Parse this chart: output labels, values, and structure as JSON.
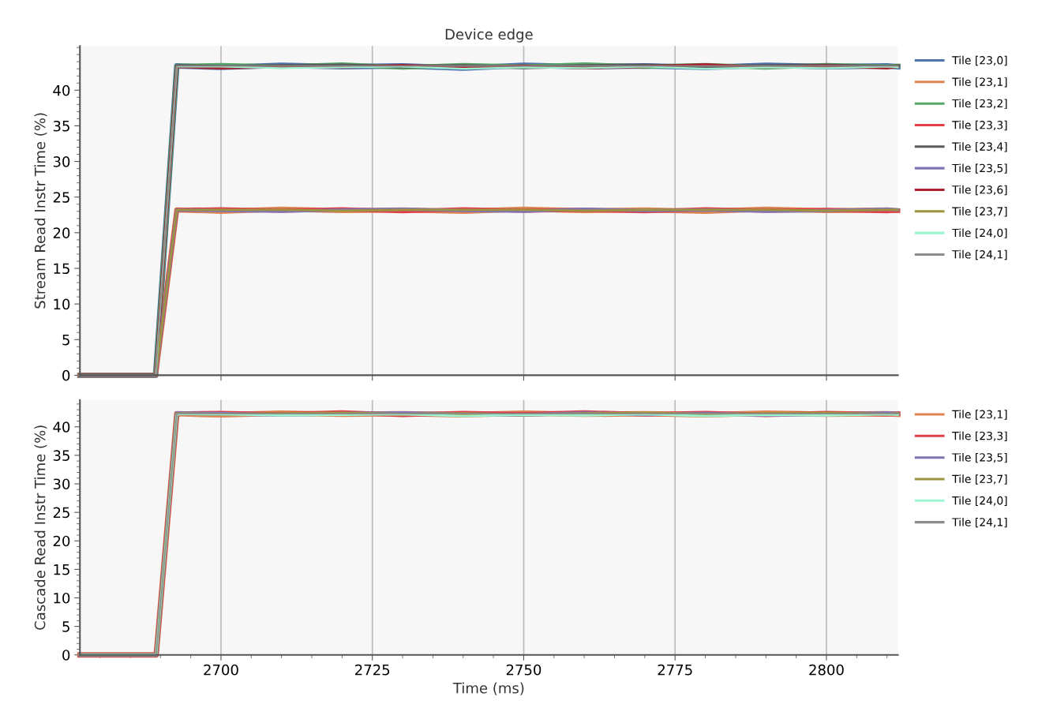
{
  "chart_data": [
    {
      "type": "line",
      "title": "Device edge",
      "ylabel": "Stream Read Instr Time (%)",
      "xlim": [
        2676.7,
        2811.8
      ],
      "ylim": [
        0,
        46.2
      ],
      "xticks": [
        2700,
        2725,
        2750,
        2775,
        2800
      ],
      "yticks": [
        0,
        5,
        10,
        15,
        20,
        25,
        30,
        35,
        40,
        {
          "value": 1,
          "label": null
        },
        {
          "value": 2,
          "label": null
        },
        {
          "value": 3,
          "label": null
        },
        {
          "value": 4,
          "label": null
        },
        {
          "value": 6,
          "label": null
        },
        {
          "value": 7,
          "label": null
        },
        {
          "value": 8,
          "label": null
        },
        {
          "value": 9,
          "label": null
        },
        {
          "value": 11,
          "label": null
        },
        {
          "value": 12,
          "label": null
        },
        {
          "value": 13,
          "label": null
        },
        {
          "value": 14,
          "label": null
        },
        {
          "value": 16,
          "label": null
        },
        {
          "value": 17,
          "label": null
        },
        {
          "value": 18,
          "label": null
        },
        {
          "value": 19,
          "label": null
        },
        {
          "value": 21,
          "label": null
        },
        {
          "value": 22,
          "label": null
        },
        {
          "value": 23,
          "label": null
        },
        {
          "value": 24,
          "label": null
        },
        {
          "value": 26,
          "label": null
        },
        {
          "value": 27,
          "label": null
        },
        {
          "value": 28,
          "label": null
        },
        {
          "value": 29,
          "label": null
        },
        {
          "value": 31,
          "label": null
        },
        {
          "value": 32,
          "label": null
        },
        {
          "value": 33,
          "label": null
        },
        {
          "value": 34,
          "label": null
        },
        {
          "value": 36,
          "label": null
        },
        {
          "value": 37,
          "label": null
        },
        {
          "value": 38,
          "label": null
        },
        {
          "value": 39,
          "label": null
        },
        {
          "value": 41,
          "label": null
        },
        {
          "value": 42,
          "label": null
        },
        {
          "value": 43,
          "label": null
        },
        {
          "value": 44,
          "label": null
        },
        {
          "value": 45,
          "label": null
        },
        {
          "value": 46,
          "label": null
        }
      ],
      "tick_labels": "y",
      "grid": "x",
      "legend": "top right",
      "marker": "none",
      "line_style": "solid",
      "x": [
        2676.7,
        2689.2,
        2692.7,
        2700,
        2710,
        2720,
        2730,
        2740,
        2750,
        2760,
        2770,
        2780,
        2790,
        2800,
        2810,
        2811.8
      ],
      "series": [
        {
          "name": "Tile [23,0]",
          "color": "#4c72b0",
          "values": [
            0,
            0,
            43.4,
            43.2,
            43.5,
            43.3,
            43.4,
            43.1,
            43.5,
            43.3,
            43.4,
            43.2,
            43.5,
            43.3,
            43.4,
            43.3
          ]
        },
        {
          "name": "Tile [23,1]",
          "color": "#dd8452",
          "values": [
            0,
            0,
            23.2,
            23.0,
            23.3,
            23.1,
            23.2,
            23.0,
            23.3,
            23.1,
            23.2,
            23.0,
            23.3,
            23.1,
            23.2,
            23.1
          ]
        },
        {
          "name": "Tile [23,2]",
          "color": "#55a868",
          "values": [
            0,
            0,
            43.4,
            43.5,
            43.3,
            43.6,
            43.2,
            43.5,
            43.3,
            43.6,
            43.3,
            43.5,
            43.2,
            43.5,
            43.3,
            43.4
          ]
        },
        {
          "name": "Tile [23,3]",
          "color": "#e0404a",
          "values": [
            0,
            0,
            23.2,
            23.3,
            23.1,
            23.3,
            23.0,
            23.3,
            23.1,
            23.2,
            23.0,
            23.3,
            23.1,
            23.2,
            23.0,
            23.1
          ]
        },
        {
          "name": "Tile [23,4]",
          "color": "#5a5a5a",
          "values": [
            0,
            0,
            43.4,
            43.3,
            43.4,
            43.5,
            43.3,
            43.4,
            43.2,
            43.4,
            43.5,
            43.3,
            43.4,
            43.5,
            43.3,
            43.4
          ]
        },
        {
          "name": "Tile [23,5]",
          "color": "#8172b3",
          "values": [
            0,
            0,
            23.2,
            23.1,
            23.0,
            23.2,
            23.3,
            23.1,
            23.0,
            23.3,
            23.1,
            23.2,
            23.0,
            23.1,
            23.3,
            23.2
          ]
        },
        {
          "name": "Tile [23,6]",
          "color": "#a8232f",
          "values": [
            0,
            0,
            43.3,
            43.1,
            43.3,
            43.2,
            43.5,
            43.2,
            43.4,
            43.1,
            43.3,
            43.6,
            43.2,
            43.4,
            43.1,
            43.3
          ]
        },
        {
          "name": "Tile [23,7]",
          "color": "#9e9440",
          "values": [
            0,
            0,
            23.2,
            23.2,
            23.2,
            23.1,
            23.2,
            23.2,
            23.2,
            23.1,
            23.2,
            23.2,
            23.2,
            23.1,
            23.2,
            23.2
          ]
        },
        {
          "name": "Tile [24,0]",
          "color": "#9cf5d0",
          "values": [
            0,
            0,
            43.3,
            43.3,
            43.1,
            43.2,
            43.3,
            43.0,
            43.2,
            43.1,
            43.3,
            43.0,
            43.2,
            43.1,
            43.3,
            43.2
          ]
        },
        {
          "name": "Tile [24,1]",
          "color": "#8c8c8c",
          "values": [
            0,
            0,
            43.4,
            43.4,
            43.4,
            43.4,
            43.4,
            43.4,
            43.4,
            43.4,
            43.4,
            43.4,
            43.4,
            43.4,
            43.4,
            43.4
          ]
        }
      ]
    },
    {
      "type": "line",
      "xlabel": "Time (ms)",
      "ylabel": "Cascade Read Instr Time (%)",
      "xlim": [
        2676.7,
        2811.8
      ],
      "ylim": [
        0,
        44.7
      ],
      "xticks": [
        2700,
        2725,
        2750,
        2775,
        2800,
        {
          "value": 2680,
          "label": null
        },
        {
          "value": 2685,
          "label": null
        },
        {
          "value": 2690,
          "label": null
        },
        {
          "value": 2695,
          "label": null
        },
        {
          "value": 2705,
          "label": null
        },
        {
          "value": 2710,
          "label": null
        },
        {
          "value": 2715,
          "label": null
        },
        {
          "value": 2720,
          "label": null
        },
        {
          "value": 2730,
          "label": null
        },
        {
          "value": 2735,
          "label": null
        },
        {
          "value": 2740,
          "label": null
        },
        {
          "value": 2745,
          "label": null
        },
        {
          "value": 2755,
          "label": null
        },
        {
          "value": 2760,
          "label": null
        },
        {
          "value": 2765,
          "label": null
        },
        {
          "value": 2770,
          "label": null
        },
        {
          "value": 2780,
          "label": null
        },
        {
          "value": 2785,
          "label": null
        },
        {
          "value": 2790,
          "label": null
        },
        {
          "value": 2795,
          "label": null
        },
        {
          "value": 2805,
          "label": null
        },
        {
          "value": 2810,
          "label": null
        }
      ],
      "yticks": [
        0,
        5,
        10,
        15,
        20,
        25,
        30,
        35,
        40,
        {
          "value": 1,
          "label": null
        },
        {
          "value": 2,
          "label": null
        },
        {
          "value": 3,
          "label": null
        },
        {
          "value": 4,
          "label": null
        },
        {
          "value": 6,
          "label": null
        },
        {
          "value": 7,
          "label": null
        },
        {
          "value": 8,
          "label": null
        },
        {
          "value": 9,
          "label": null
        },
        {
          "value": 11,
          "label": null
        },
        {
          "value": 12,
          "label": null
        },
        {
          "value": 13,
          "label": null
        },
        {
          "value": 14,
          "label": null
        },
        {
          "value": 16,
          "label": null
        },
        {
          "value": 17,
          "label": null
        },
        {
          "value": 18,
          "label": null
        },
        {
          "value": 19,
          "label": null
        },
        {
          "value": 21,
          "label": null
        },
        {
          "value": 22,
          "label": null
        },
        {
          "value": 23,
          "label": null
        },
        {
          "value": 24,
          "label": null
        },
        {
          "value": 26,
          "label": null
        },
        {
          "value": 27,
          "label": null
        },
        {
          "value": 28,
          "label": null
        },
        {
          "value": 29,
          "label": null
        },
        {
          "value": 31,
          "label": null
        },
        {
          "value": 32,
          "label": null
        },
        {
          "value": 33,
          "label": null
        },
        {
          "value": 34,
          "label": null
        },
        {
          "value": 36,
          "label": null
        },
        {
          "value": 37,
          "label": null
        },
        {
          "value": 38,
          "label": null
        },
        {
          "value": 39,
          "label": null
        },
        {
          "value": 41,
          "label": null
        },
        {
          "value": 42,
          "label": null
        },
        {
          "value": 43,
          "label": null
        },
        {
          "value": 44,
          "label": null
        }
      ],
      "grid": "x",
      "legend": "top right",
      "marker": "none",
      "line_style": "solid",
      "x": [
        2676.7,
        2689.3,
        2692.7,
        2700,
        2710,
        2720,
        2730,
        2740,
        2750,
        2760,
        2770,
        2780,
        2790,
        2800,
        2810,
        2811.8
      ],
      "series": [
        {
          "name": "Tile [23,1]",
          "color": "#dd8452",
          "values": [
            0,
            0,
            42.3,
            42.1,
            42.4,
            42.2,
            42.3,
            42.1,
            42.4,
            42.2,
            42.3,
            42.1,
            42.4,
            42.2,
            42.3,
            42.2
          ]
        },
        {
          "name": "Tile [23,3]",
          "color": "#e0404a",
          "values": [
            0,
            0,
            42.3,
            42.4,
            42.2,
            42.5,
            42.1,
            42.4,
            42.2,
            42.5,
            42.2,
            42.4,
            42.1,
            42.4,
            42.2,
            42.3
          ]
        },
        {
          "name": "Tile [23,5]",
          "color": "#8172b3",
          "values": [
            0,
            0,
            42.4,
            42.3,
            42.1,
            42.3,
            42.4,
            42.2,
            42.1,
            42.4,
            42.2,
            42.3,
            42.1,
            42.2,
            42.4,
            42.3
          ]
        },
        {
          "name": "Tile [23,7]",
          "color": "#9e9440",
          "values": [
            0,
            0,
            42.3,
            42.2,
            42.3,
            42.4,
            42.2,
            42.3,
            42.1,
            42.3,
            42.4,
            42.2,
            42.3,
            42.4,
            42.2,
            42.3
          ]
        },
        {
          "name": "Tile [24,0]",
          "color": "#9cf5d0",
          "values": [
            0,
            0,
            42.2,
            42.2,
            42.0,
            42.1,
            42.2,
            41.9,
            42.1,
            42.0,
            42.2,
            41.9,
            42.1,
            42.0,
            42.2,
            42.1
          ]
        },
        {
          "name": "Tile [24,1]",
          "color": "#8c8c8c",
          "values": [
            0,
            0,
            42.3,
            42.3,
            42.3,
            42.3,
            42.3,
            42.3,
            42.3,
            42.3,
            42.3,
            42.3,
            42.3,
            42.3,
            42.3,
            42.3
          ]
        }
      ]
    }
  ]
}
